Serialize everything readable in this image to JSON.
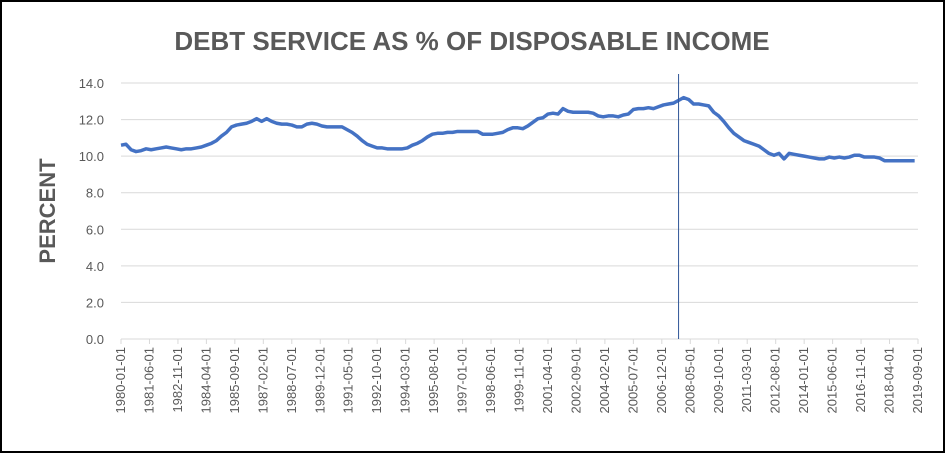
{
  "chart_data": {
    "type": "line",
    "title": "DEBT SERVICE AS % OF DISPOSABLE  INCOME",
    "y_label": "PERCENT",
    "x": [
      "1980-01-01",
      "1980-04-01",
      "1980-07-01",
      "1980-10-01",
      "1981-01-01",
      "1981-04-01",
      "1981-07-01",
      "1981-10-01",
      "1982-01-01",
      "1982-04-01",
      "1982-07-01",
      "1982-10-01",
      "1983-01-01",
      "1983-04-01",
      "1983-07-01",
      "1983-10-01",
      "1984-01-01",
      "1984-04-01",
      "1984-07-01",
      "1984-10-01",
      "1985-01-01",
      "1985-04-01",
      "1985-07-01",
      "1985-10-01",
      "1986-01-01",
      "1986-04-01",
      "1986-07-01",
      "1986-10-01",
      "1987-01-01",
      "1987-04-01",
      "1987-07-01",
      "1987-10-01",
      "1988-01-01",
      "1988-04-01",
      "1988-07-01",
      "1988-10-01",
      "1989-01-01",
      "1989-04-01",
      "1989-07-01",
      "1989-10-01",
      "1990-01-01",
      "1990-04-01",
      "1990-07-01",
      "1990-10-01",
      "1991-01-01",
      "1991-04-01",
      "1991-07-01",
      "1991-10-01",
      "1992-01-01",
      "1992-04-01",
      "1992-07-01",
      "1992-10-01",
      "1993-01-01",
      "1993-04-01",
      "1993-07-01",
      "1993-10-01",
      "1994-01-01",
      "1994-04-01",
      "1994-07-01",
      "1994-10-01",
      "1995-01-01",
      "1995-04-01",
      "1995-07-01",
      "1995-10-01",
      "1996-01-01",
      "1996-04-01",
      "1996-07-01",
      "1996-10-01",
      "1997-01-01",
      "1997-04-01",
      "1997-07-01",
      "1997-10-01",
      "1998-01-01",
      "1998-04-01",
      "1998-07-01",
      "1998-10-01",
      "1999-01-01",
      "1999-04-01",
      "1999-07-01",
      "1999-10-01",
      "2000-01-01",
      "2000-04-01",
      "2000-07-01",
      "2000-10-01",
      "2001-01-01",
      "2001-04-01",
      "2001-07-01",
      "2001-10-01",
      "2002-01-01",
      "2002-04-01",
      "2002-07-01",
      "2002-10-01",
      "2003-01-01",
      "2003-04-01",
      "2003-07-01",
      "2003-10-01",
      "2004-01-01",
      "2004-04-01",
      "2004-07-01",
      "2004-10-01",
      "2005-01-01",
      "2005-04-01",
      "2005-07-01",
      "2005-10-01",
      "2006-01-01",
      "2006-04-01",
      "2006-07-01",
      "2006-10-01",
      "2007-01-01",
      "2007-04-01",
      "2007-07-01",
      "2007-10-01",
      "2008-01-01",
      "2008-04-01",
      "2008-07-01",
      "2008-10-01",
      "2009-01-01",
      "2009-04-01",
      "2009-07-01",
      "2009-10-01",
      "2010-01-01",
      "2010-04-01",
      "2010-07-01",
      "2010-10-01",
      "2011-01-01",
      "2011-04-01",
      "2011-07-01",
      "2011-10-01",
      "2012-01-01",
      "2012-04-01",
      "2012-07-01",
      "2012-10-01",
      "2013-01-01",
      "2013-04-01",
      "2013-07-01",
      "2013-10-01",
      "2014-01-01",
      "2014-04-01",
      "2014-07-01",
      "2014-10-01",
      "2015-01-01",
      "2015-04-01",
      "2015-07-01",
      "2015-10-01",
      "2016-01-01",
      "2016-04-01",
      "2016-07-01",
      "2016-10-01",
      "2017-01-01",
      "2017-04-01",
      "2017-07-01",
      "2017-10-01",
      "2018-01-01",
      "2018-04-01",
      "2018-07-01",
      "2018-10-01",
      "2019-01-01",
      "2019-04-01",
      "2019-07-01"
    ],
    "series": [
      {
        "name": "Debt service",
        "color": "#4472c4",
        "values": [
          10.6,
          10.65,
          10.35,
          10.25,
          10.3,
          10.4,
          10.35,
          10.4,
          10.45,
          10.5,
          10.45,
          10.4,
          10.35,
          10.4,
          10.4,
          10.45,
          10.5,
          10.6,
          10.7,
          10.85,
          11.1,
          11.3,
          11.6,
          11.7,
          11.75,
          11.8,
          11.9,
          12.05,
          11.9,
          12.05,
          11.9,
          11.8,
          11.75,
          11.75,
          11.7,
          11.6,
          11.6,
          11.75,
          11.8,
          11.75,
          11.65,
          11.6,
          11.6,
          11.6,
          11.6,
          11.45,
          11.3,
          11.1,
          10.85,
          10.65,
          10.55,
          10.45,
          10.45,
          10.4,
          10.4,
          10.4,
          10.4,
          10.45,
          10.6,
          10.7,
          10.85,
          11.05,
          11.2,
          11.25,
          11.25,
          11.3,
          11.3,
          11.35,
          11.35,
          11.35,
          11.35,
          11.35,
          11.2,
          11.2,
          11.2,
          11.25,
          11.3,
          11.45,
          11.55,
          11.55,
          11.5,
          11.65,
          11.85,
          12.05,
          12.1,
          12.3,
          12.35,
          12.3,
          12.6,
          12.45,
          12.4,
          12.4,
          12.4,
          12.4,
          12.35,
          12.2,
          12.15,
          12.2,
          12.2,
          12.15,
          12.25,
          12.3,
          12.55,
          12.6,
          12.6,
          12.65,
          12.6,
          12.7,
          12.8,
          12.85,
          12.9,
          13.05,
          13.2,
          13.1,
          12.85,
          12.85,
          12.8,
          12.75,
          12.4,
          12.2,
          11.9,
          11.55,
          11.25,
          11.05,
          10.85,
          10.75,
          10.65,
          10.55,
          10.35,
          10.15,
          10.05,
          10.15,
          9.85,
          10.15,
          10.1,
          10.05,
          10.0,
          9.95,
          9.9,
          9.85,
          9.85,
          9.95,
          9.9,
          9.95,
          9.9,
          9.95,
          10.05,
          10.05,
          9.95,
          9.95,
          9.95,
          9.9,
          9.75,
          9.75,
          9.75,
          9.75,
          9.75,
          9.75,
          9.75
        ]
      }
    ],
    "xlim": [
      "1980-01-01",
      "2019-09-01"
    ],
    "xticks": [
      "1980-01-01",
      "1981-06-01",
      "1982-11-01",
      "1984-04-01",
      "1985-09-01",
      "1987-02-01",
      "1988-07-01",
      "1989-12-01",
      "1991-05-01",
      "1992-10-01",
      "1994-03-01",
      "1995-08-01",
      "1997-01-01",
      "1998-06-01",
      "1999-11-01",
      "2001-04-01",
      "2002-09-01",
      "2004-02-01",
      "2005-07-01",
      "2006-12-01",
      "2008-05-01",
      "2009-10-01",
      "2011-03-01",
      "2012-08-01",
      "2014-01-01",
      "2015-06-01",
      "2016-11-01",
      "2018-04-01",
      "2019-09-01"
    ],
    "ylim": [
      0,
      14
    ],
    "yticks": [
      {
        "value": 0,
        "label": "0.0"
      },
      {
        "value": 2,
        "label": "2.0"
      },
      {
        "value": 4,
        "label": "4.0"
      },
      {
        "value": 6,
        "label": "6.0"
      },
      {
        "value": 8,
        "label": "8.0"
      },
      {
        "value": 10,
        "label": "10.0"
      },
      {
        "value": 12,
        "label": "12.0"
      },
      {
        "value": 14,
        "label": "14.0"
      }
    ],
    "grid": true,
    "vline": "2007-10-01"
  }
}
